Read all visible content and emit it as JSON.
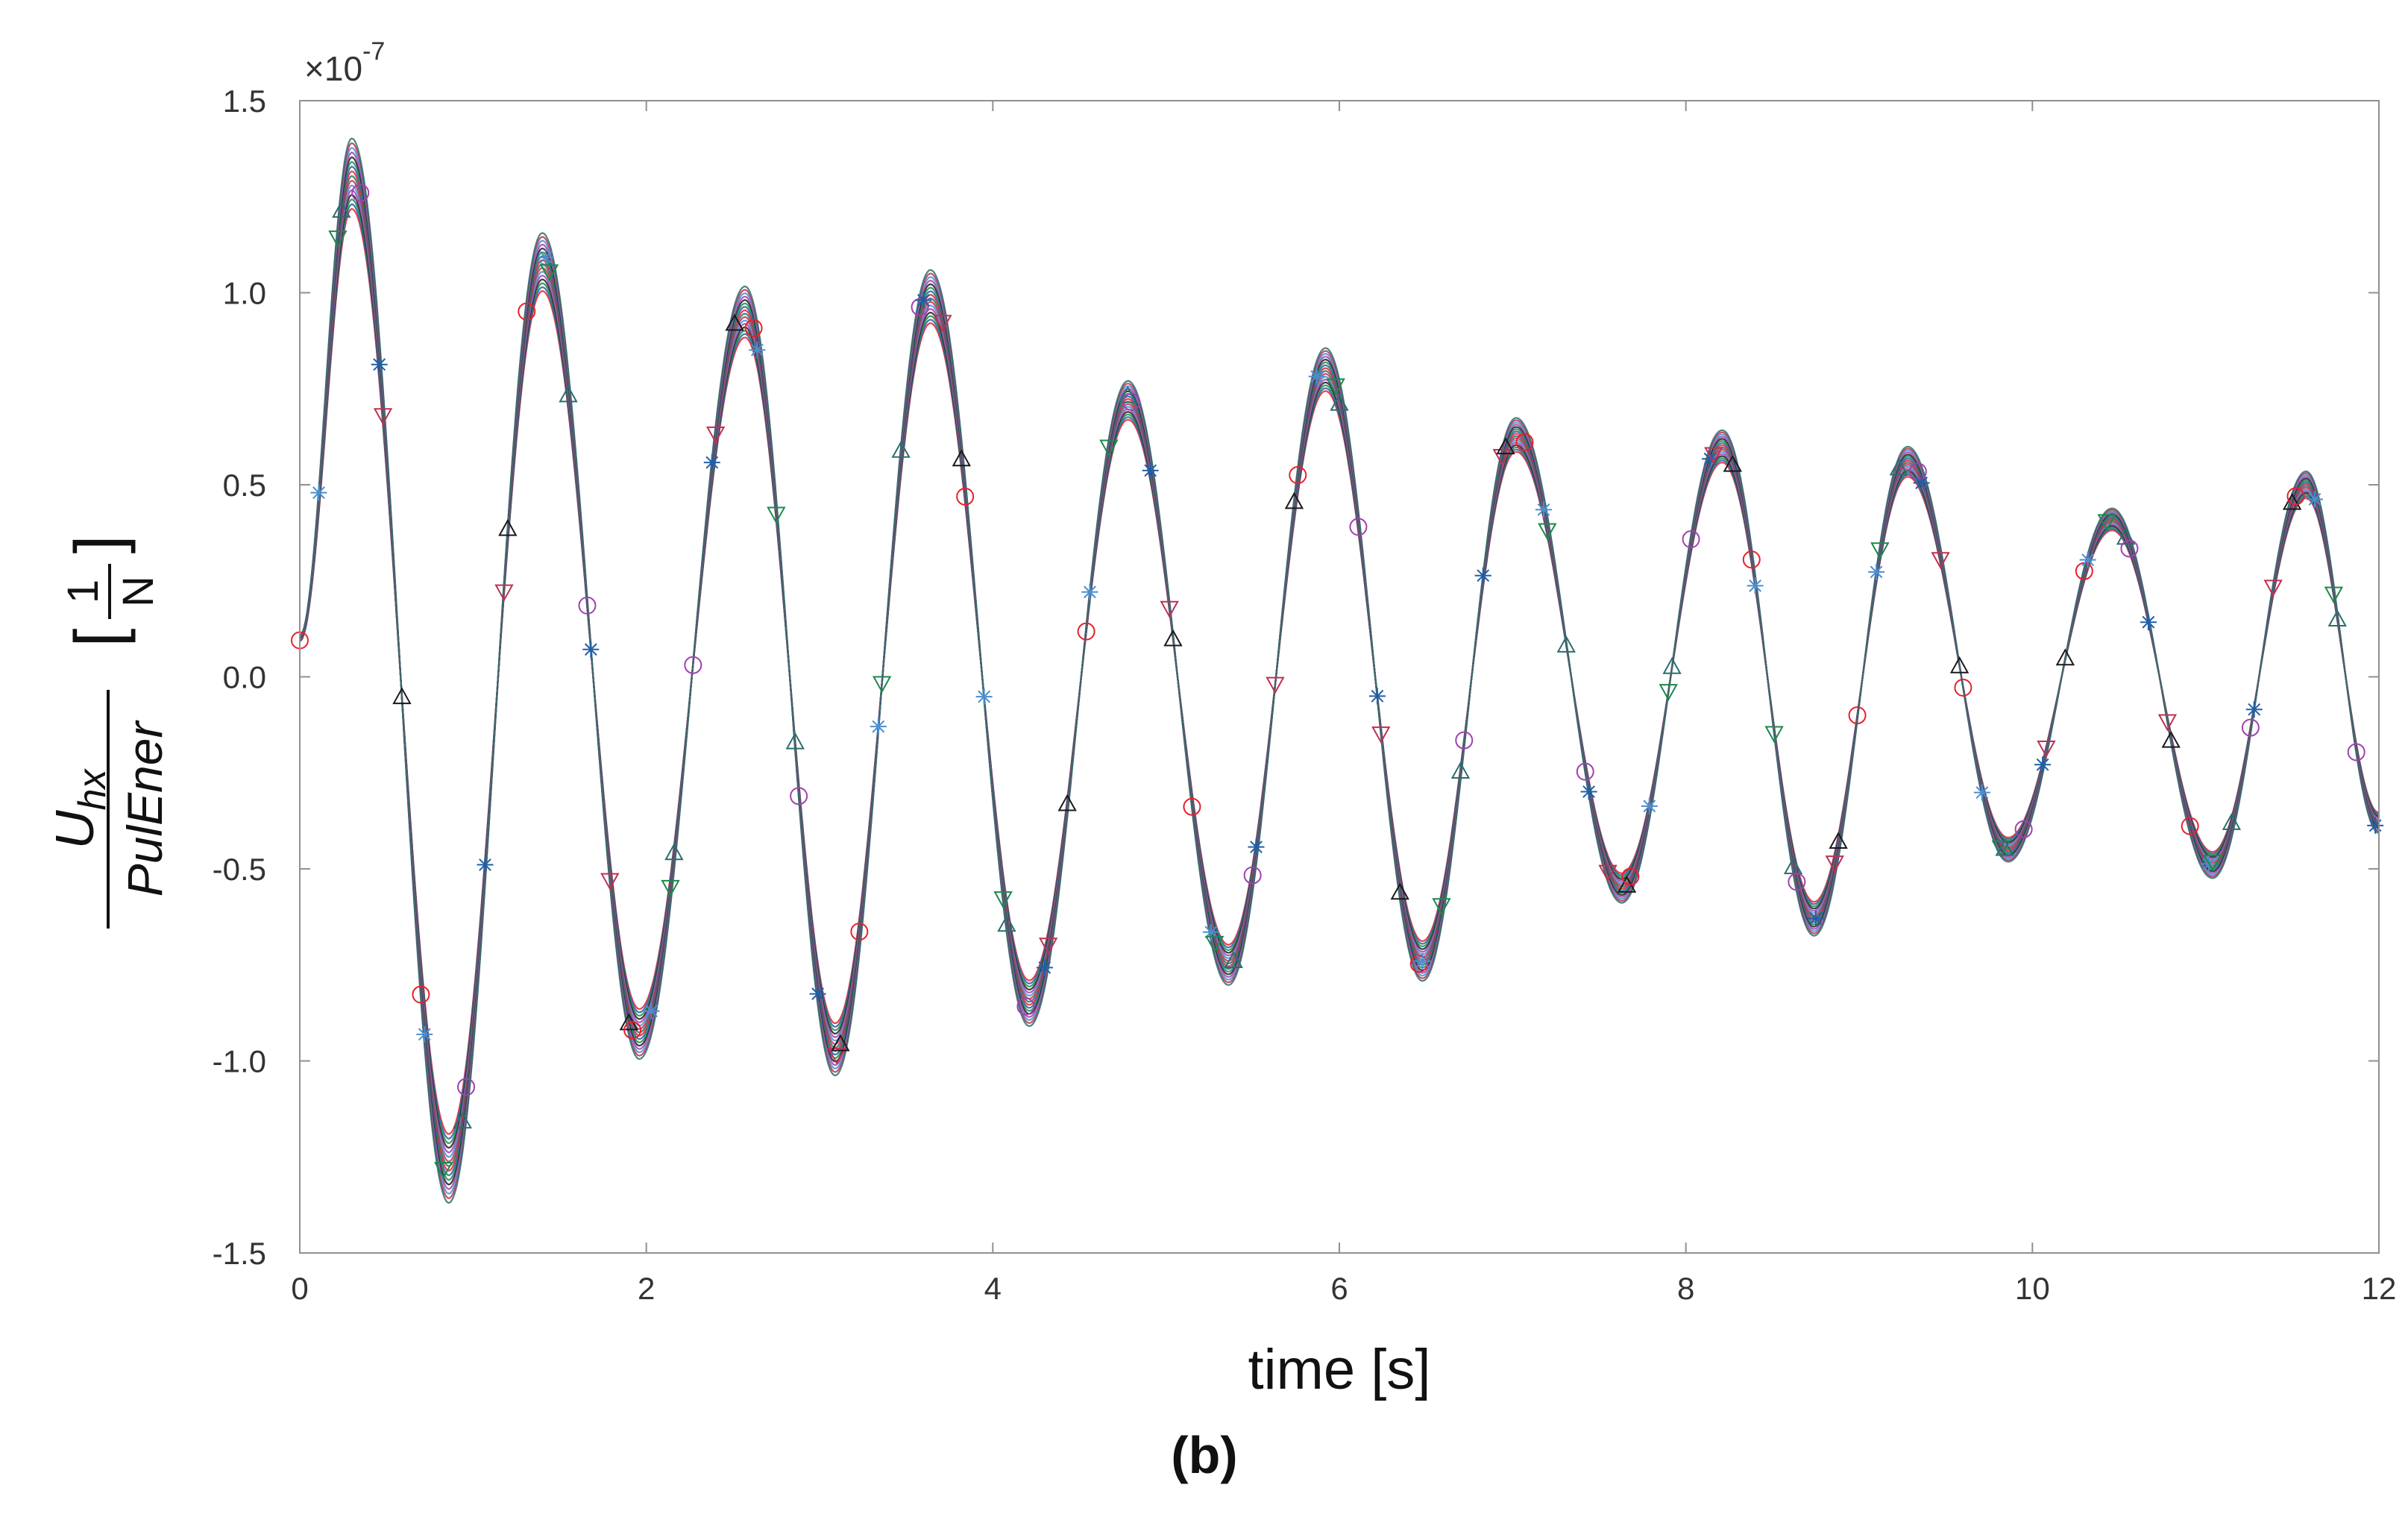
{
  "chart_data": {
    "type": "line",
    "xlabel": "time [s]",
    "ylabel_top": "U",
    "ylabel_top_sub": "hx",
    "ylabel_bottom": "PulEner",
    "ylabel_unit_num": "1",
    "ylabel_unit_den": "N",
    "exponent_prefix": "×10",
    "exponent_power": "-7",
    "caption": "(b)",
    "xlim": [
      0,
      12
    ],
    "ylim": [
      -1.5,
      1.5
    ],
    "xticks": [
      0,
      2,
      4,
      6,
      8,
      10,
      12
    ],
    "xtick_labels": [
      "0",
      "2",
      "4",
      "6",
      "8",
      "10",
      "12"
    ],
    "yticks": [
      -1.5,
      -1.0,
      -0.5,
      0.0,
      0.5,
      1.0,
      1.5
    ],
    "ytick_labels": [
      "-1.5",
      "-1.0",
      "-0.5",
      "0.0",
      "0.5",
      "1.0",
      "1.5"
    ],
    "grid": false,
    "series_colors": [
      "#e8202a",
      "#1f5fa8",
      "#1a8a4a",
      "#1a1a1a",
      "#a040b0",
      "#4a8fd0",
      "#c03050",
      "#2a6e6e"
    ],
    "marker_shapes": [
      "circle",
      "triangle-up",
      "triangle-down",
      "asterisk"
    ],
    "peaks": [
      {
        "t": 0.0,
        "v": 0.1
      },
      {
        "t": 0.3,
        "v": 1.31
      },
      {
        "t": 0.86,
        "v": -1.28
      },
      {
        "t": 1.4,
        "v": 1.08
      },
      {
        "t": 1.96,
        "v": -0.93
      },
      {
        "t": 2.57,
        "v": 0.95
      },
      {
        "t": 3.09,
        "v": -0.97
      },
      {
        "t": 3.64,
        "v": 0.99
      },
      {
        "t": 4.21,
        "v": -0.85
      },
      {
        "t": 4.78,
        "v": 0.72
      },
      {
        "t": 5.36,
        "v": -0.75
      },
      {
        "t": 5.92,
        "v": 0.8
      },
      {
        "t": 6.48,
        "v": -0.74
      },
      {
        "t": 7.02,
        "v": 0.63
      },
      {
        "t": 7.63,
        "v": -0.55
      },
      {
        "t": 8.21,
        "v": 0.6
      },
      {
        "t": 8.74,
        "v": -0.63
      },
      {
        "t": 9.28,
        "v": 0.56
      },
      {
        "t": 9.86,
        "v": -0.45
      },
      {
        "t": 10.46,
        "v": 0.41
      },
      {
        "t": 11.04,
        "v": -0.49
      },
      {
        "t": 11.58,
        "v": 0.5
      },
      {
        "t": 12.0,
        "v": -0.38
      }
    ]
  }
}
